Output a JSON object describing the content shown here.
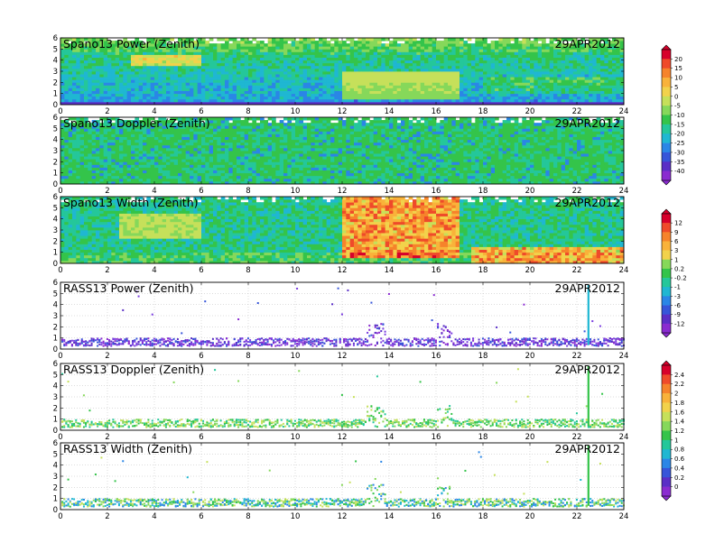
{
  "chart_data": [
    {
      "type": "heatmap",
      "title": "Spano13 Power (Zenith)",
      "date": "29APR2012",
      "xlim": [
        0,
        24
      ],
      "ylim": [
        0,
        6
      ],
      "xticks": [
        "0",
        "2",
        "4",
        "6",
        "8",
        "10",
        "12",
        "14",
        "16",
        "18",
        "20",
        "22",
        "24"
      ],
      "yticks": [
        "0",
        "1",
        "2",
        "3",
        "4",
        "5",
        "6"
      ],
      "colorbar": "power"
    },
    {
      "type": "heatmap",
      "title": "Spano13 Doppler (Zenith)",
      "date": "29APR2012",
      "xlim": [
        0,
        24
      ],
      "ylim": [
        0,
        6
      ],
      "xticks": [
        "0",
        "2",
        "4",
        "6",
        "8",
        "10",
        "12",
        "14",
        "16",
        "18",
        "20",
        "22",
        "24"
      ],
      "yticks": [
        "0",
        "1",
        "2",
        "3",
        "4",
        "5",
        "6"
      ],
      "colorbar": "power"
    },
    {
      "type": "heatmap",
      "title": "Spano13 Width (Zenith)",
      "date": "29APR2012",
      "xlim": [
        0,
        24
      ],
      "ylim": [
        0,
        6
      ],
      "xticks": [
        "0",
        "2",
        "4",
        "6",
        "8",
        "10",
        "12",
        "14",
        "16",
        "18",
        "20",
        "22",
        "24"
      ],
      "yticks": [
        "0",
        "1",
        "2",
        "3",
        "4",
        "5",
        "6"
      ],
      "colorbar": "width"
    },
    {
      "type": "heatmap",
      "title": "RASS13 Power (Zenith)",
      "date": "29APR2012",
      "xlim": [
        0,
        24
      ],
      "ylim": [
        0,
        6
      ],
      "xticks": [
        "0",
        "2",
        "4",
        "6",
        "8",
        "10",
        "12",
        "14",
        "16",
        "18",
        "20",
        "22",
        "24"
      ],
      "yticks": [
        "0",
        "1",
        "2",
        "3",
        "4",
        "5",
        "6"
      ],
      "colorbar": "width"
    },
    {
      "type": "heatmap",
      "title": "RASS13 Doppler (Zenith)",
      "date": "29APR2012",
      "xlim": [
        0,
        24
      ],
      "ylim": [
        0,
        6
      ],
      "xticks": [
        "0",
        "2",
        "4",
        "6",
        "8",
        "10",
        "12",
        "14",
        "16",
        "18",
        "20",
        "22",
        "24"
      ],
      "yticks": [
        "0",
        "1",
        "2",
        "3",
        "4",
        "5",
        "6"
      ],
      "colorbar": "rass"
    },
    {
      "type": "heatmap",
      "title": "RASS13 Width (Zenith)",
      "date": "29APR2012",
      "xlim": [
        0,
        24
      ],
      "ylim": [
        0,
        6
      ],
      "xticks": [
        "0",
        "2",
        "4",
        "6",
        "8",
        "10",
        "12",
        "14",
        "16",
        "18",
        "20",
        "22",
        "24"
      ],
      "yticks": [
        "0",
        "1",
        "2",
        "3",
        "4",
        "5",
        "6"
      ],
      "colorbar": "rass"
    }
  ],
  "colorbars": {
    "power": {
      "labels": [
        "20",
        "15",
        "10",
        "5",
        "0",
        "-5",
        "-10",
        "-15",
        "-20",
        "-25",
        "-30",
        "-35",
        "-40"
      ],
      "colors": [
        "#d7002b",
        "#ef4a2a",
        "#f6832b",
        "#f9b23a",
        "#f2d24b",
        "#c6e05a",
        "#86d85a",
        "#34c44a",
        "#24c79a",
        "#1fb7d2",
        "#2a86e6",
        "#3655d9",
        "#5a2ec6",
        "#8a2bd0"
      ]
    },
    "width": {
      "labels": [
        "12",
        "9",
        "6",
        "3",
        "1",
        "0.2",
        "-0.2",
        "-1",
        "-3",
        "-6",
        "-9",
        "-12"
      ],
      "colors": [
        "#d7002b",
        "#ef4a2a",
        "#f6832b",
        "#f9b23a",
        "#f2d24b",
        "#86d85a",
        "#34c44a",
        "#24c79a",
        "#1fb7d2",
        "#2a86e6",
        "#3655d9",
        "#5a2ec6",
        "#8a2bd0"
      ]
    },
    "rass": {
      "labels": [
        "2.4",
        "2.2",
        "2",
        "1.8",
        "1.6",
        "1.4",
        "1.2",
        "1",
        "0.8",
        "0.6",
        "0.4",
        "0.2",
        "0"
      ],
      "colors": [
        "#d7002b",
        "#ef4a2a",
        "#f6832b",
        "#f9b23a",
        "#f2d24b",
        "#c6e05a",
        "#86d85a",
        "#34c44a",
        "#24c79a",
        "#1fb7d2",
        "#2a86e6",
        "#3655d9",
        "#5a2ec6",
        "#8a2bd0"
      ]
    }
  }
}
